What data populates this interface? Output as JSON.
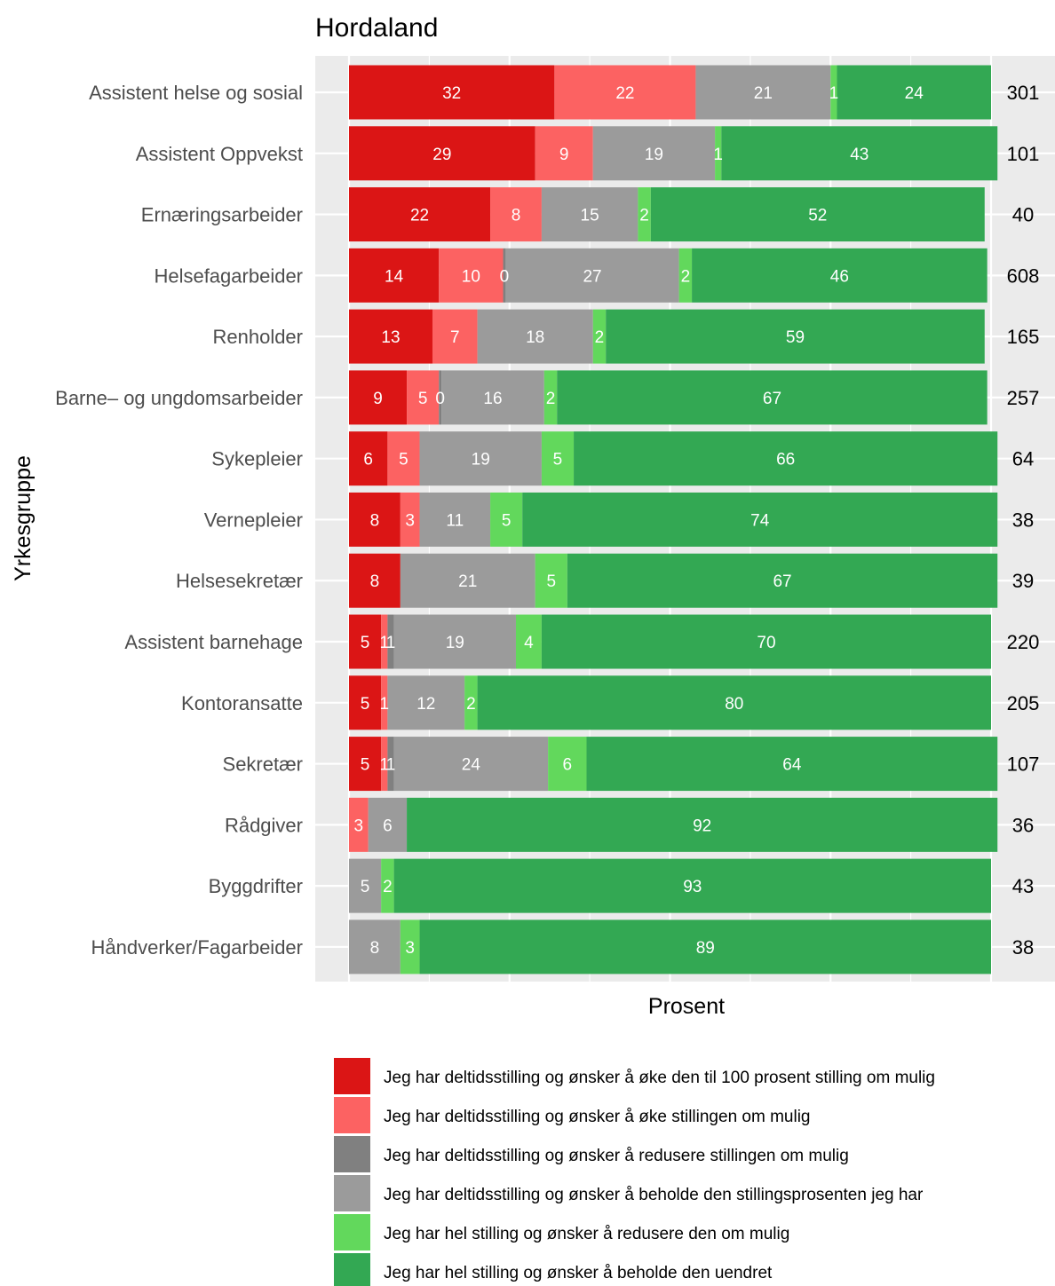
{
  "chart_data": {
    "type": "bar",
    "orientation": "horizontal",
    "stacked": true,
    "title": "Hordaland",
    "xlabel": "Prosent",
    "ylabel": "Yrkesgruppe",
    "xlim": [
      0,
      100
    ],
    "grid": true,
    "legend_position": "bottom",
    "categories": [
      "Assistent helse og sosial",
      "Assistent Oppvekst",
      "Ernæringsarbeider",
      "Helsefagarbeider",
      "Renholder",
      "Barne– og ungdomsarbeider",
      "Sykepleier",
      "Vernepleier",
      "Helsesekretær",
      "Assistent barnehage",
      "Kontoransatte",
      "Sekretær",
      "Rådgiver",
      "Byggdrifter",
      "Håndverker/Fagarbeider"
    ],
    "n": [
      "301",
      "101",
      "40",
      "608",
      "165",
      "257",
      "64",
      "38",
      "39",
      "220",
      "205",
      "107",
      "36",
      "43",
      "38"
    ],
    "series": [
      {
        "name": "Jeg har deltidsstilling og ønsker å øke den til 100 prosent stilling om mulig",
        "color": "#db1515",
        "values": [
          32,
          29,
          22,
          14,
          13,
          9,
          6,
          8,
          8,
          5,
          5,
          5,
          0,
          0,
          0
        ],
        "labels": [
          "32",
          "29",
          "22",
          "14",
          "13",
          "9",
          "6",
          "8",
          "8",
          "5",
          "5",
          "5",
          "",
          "",
          ""
        ]
      },
      {
        "name": "Jeg har deltidsstilling og ønsker å øke stillingen om mulig",
        "color": "#fc6262",
        "values": [
          22,
          9,
          8,
          10,
          7,
          5,
          5,
          3,
          0,
          1,
          1,
          1,
          3,
          0,
          0
        ],
        "labels": [
          "22",
          "9",
          "8",
          "10",
          "7",
          "5",
          "5",
          "3",
          "",
          "1",
          "1",
          "1",
          "3",
          "",
          ""
        ]
      },
      {
        "name": "Jeg har deltidsstilling og ønsker å redusere stillingen om mulig",
        "color": "#808080",
        "values": [
          0,
          0,
          0,
          0.4,
          0,
          0.4,
          0,
          0,
          0,
          1,
          0,
          1,
          0,
          0,
          0
        ],
        "labels": [
          "",
          "",
          "",
          "0",
          "",
          "0",
          "",
          "",
          "",
          "1",
          "",
          "1",
          "",
          "",
          ""
        ]
      },
      {
        "name": "Jeg har deltidsstilling og ønsker å beholde den stillingsprosenten jeg har",
        "color": "#9b9b9b",
        "values": [
          21,
          19,
          15,
          27,
          18,
          16,
          19,
          11,
          21,
          19,
          12,
          24,
          6,
          5,
          8
        ],
        "labels": [
          "21",
          "19",
          "15",
          "27",
          "18",
          "16",
          "19",
          "11",
          "21",
          "19",
          "12",
          "24",
          "6",
          "5",
          "8"
        ]
      },
      {
        "name": "Jeg har hel stilling og ønsker å redusere den om mulig",
        "color": "#62d85c",
        "values": [
          1,
          1,
          2,
          2,
          2,
          2,
          5,
          5,
          5,
          4,
          2,
          6,
          0,
          2,
          3
        ],
        "labels": [
          "1",
          "1",
          "2",
          "2",
          "2",
          "2",
          "5",
          "5",
          "5",
          "4",
          "2",
          "6",
          "",
          "2",
          "3"
        ]
      },
      {
        "name": "Jeg har hel stilling og ønsker å beholde den uendret",
        "color": "#33a853",
        "values": [
          24,
          43,
          52,
          46,
          59,
          67,
          66,
          74,
          67,
          70,
          80,
          64,
          92,
          93,
          89
        ],
        "labels": [
          "24",
          "43",
          "52",
          "46",
          "59",
          "67",
          "66",
          "74",
          "67",
          "70",
          "80",
          "64",
          "92",
          "93",
          "89"
        ]
      }
    ]
  },
  "colors": {
    "panel_background": "#ebebeb",
    "gridline": "#ffffff"
  }
}
